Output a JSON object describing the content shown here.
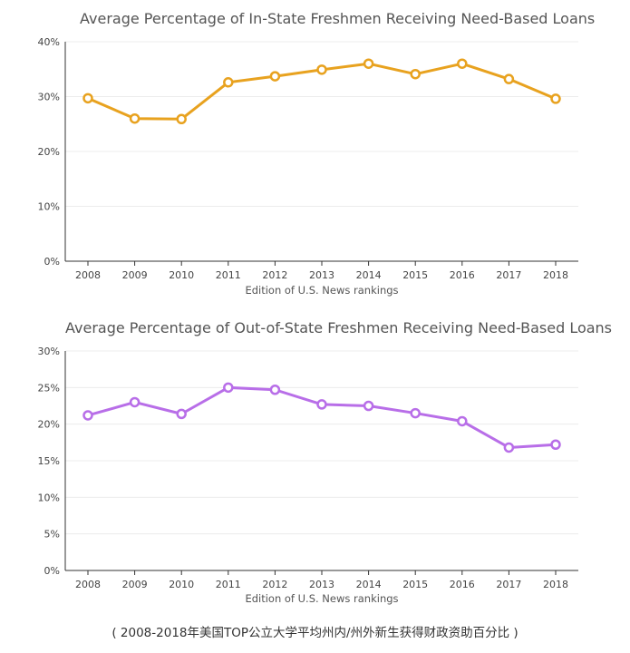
{
  "chart_data": [
    {
      "type": "line",
      "title": "Average Percentage of In-State Freshmen Receiving Need-Based Loans",
      "xlabel": "Edition of U.S. News rankings",
      "ylabel": "",
      "categories": [
        "2008",
        "2009",
        "2010",
        "2011",
        "2012",
        "2013",
        "2014",
        "2015",
        "2016",
        "2017",
        "2018"
      ],
      "series": [
        {
          "values": [
            29.7,
            26.0,
            25.9,
            32.6,
            33.7,
            34.9,
            36.0,
            34.1,
            36.0,
            33.2,
            29.6
          ]
        }
      ],
      "ylim": [
        0,
        40
      ],
      "yticks": [
        0,
        10,
        20,
        30,
        40
      ],
      "ytick_labels": [
        "0%",
        "10%",
        "20%",
        "30%",
        "40%"
      ],
      "color": "#e8a21f",
      "grid": true
    },
    {
      "type": "line",
      "title": "Average Percentage of Out-of-State Freshmen Receiving Need-Based Loans",
      "xlabel": "Edition of U.S. News rankings",
      "ylabel": "",
      "categories": [
        "2008",
        "2009",
        "2010",
        "2011",
        "2012",
        "2013",
        "2014",
        "2015",
        "2016",
        "2017",
        "2018"
      ],
      "series": [
        {
          "values": [
            21.2,
            23.0,
            21.4,
            25.0,
            24.7,
            22.7,
            22.5,
            21.5,
            20.4,
            16.8,
            17.2
          ]
        }
      ],
      "ylim": [
        0,
        30
      ],
      "yticks": [
        0,
        5,
        10,
        15,
        20,
        25,
        30
      ],
      "ytick_labels": [
        "0%",
        "5%",
        "10%",
        "15%",
        "20%",
        "25%",
        "30%"
      ],
      "color": "#b86ee8",
      "grid": true
    }
  ],
  "caption": "( 2008-2018年美国TOP公立大学平均州内/州外新生获得财政资助百分比 )"
}
